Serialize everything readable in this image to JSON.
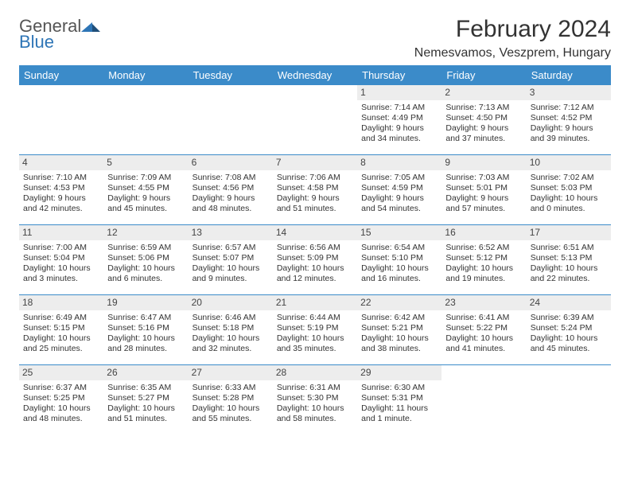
{
  "logo": {
    "general": "General",
    "blue": "Blue"
  },
  "title": "February 2024",
  "subtitle": "Nemesvamos, Veszprem, Hungary",
  "colors": {
    "header_bg": "#3b8bc9",
    "header_text": "#ffffff",
    "daynum_bg": "#ededed",
    "rule": "#3b8bc9",
    "logo_blue": "#2e75b6",
    "logo_gray": "#555555"
  },
  "daynames": [
    "Sunday",
    "Monday",
    "Tuesday",
    "Wednesday",
    "Thursday",
    "Friday",
    "Saturday"
  ],
  "weeks": [
    [
      {
        "n": "",
        "empty": true
      },
      {
        "n": "",
        "empty": true
      },
      {
        "n": "",
        "empty": true
      },
      {
        "n": "",
        "empty": true
      },
      {
        "n": "1",
        "sunrise": "Sunrise: 7:14 AM",
        "sunset": "Sunset: 4:49 PM",
        "daylight": "Daylight: 9 hours and 34 minutes."
      },
      {
        "n": "2",
        "sunrise": "Sunrise: 7:13 AM",
        "sunset": "Sunset: 4:50 PM",
        "daylight": "Daylight: 9 hours and 37 minutes."
      },
      {
        "n": "3",
        "sunrise": "Sunrise: 7:12 AM",
        "sunset": "Sunset: 4:52 PM",
        "daylight": "Daylight: 9 hours and 39 minutes."
      }
    ],
    [
      {
        "n": "4",
        "sunrise": "Sunrise: 7:10 AM",
        "sunset": "Sunset: 4:53 PM",
        "daylight": "Daylight: 9 hours and 42 minutes."
      },
      {
        "n": "5",
        "sunrise": "Sunrise: 7:09 AM",
        "sunset": "Sunset: 4:55 PM",
        "daylight": "Daylight: 9 hours and 45 minutes."
      },
      {
        "n": "6",
        "sunrise": "Sunrise: 7:08 AM",
        "sunset": "Sunset: 4:56 PM",
        "daylight": "Daylight: 9 hours and 48 minutes."
      },
      {
        "n": "7",
        "sunrise": "Sunrise: 7:06 AM",
        "sunset": "Sunset: 4:58 PM",
        "daylight": "Daylight: 9 hours and 51 minutes."
      },
      {
        "n": "8",
        "sunrise": "Sunrise: 7:05 AM",
        "sunset": "Sunset: 4:59 PM",
        "daylight": "Daylight: 9 hours and 54 minutes."
      },
      {
        "n": "9",
        "sunrise": "Sunrise: 7:03 AM",
        "sunset": "Sunset: 5:01 PM",
        "daylight": "Daylight: 9 hours and 57 minutes."
      },
      {
        "n": "10",
        "sunrise": "Sunrise: 7:02 AM",
        "sunset": "Sunset: 5:03 PM",
        "daylight": "Daylight: 10 hours and 0 minutes."
      }
    ],
    [
      {
        "n": "11",
        "sunrise": "Sunrise: 7:00 AM",
        "sunset": "Sunset: 5:04 PM",
        "daylight": "Daylight: 10 hours and 3 minutes."
      },
      {
        "n": "12",
        "sunrise": "Sunrise: 6:59 AM",
        "sunset": "Sunset: 5:06 PM",
        "daylight": "Daylight: 10 hours and 6 minutes."
      },
      {
        "n": "13",
        "sunrise": "Sunrise: 6:57 AM",
        "sunset": "Sunset: 5:07 PM",
        "daylight": "Daylight: 10 hours and 9 minutes."
      },
      {
        "n": "14",
        "sunrise": "Sunrise: 6:56 AM",
        "sunset": "Sunset: 5:09 PM",
        "daylight": "Daylight: 10 hours and 12 minutes."
      },
      {
        "n": "15",
        "sunrise": "Sunrise: 6:54 AM",
        "sunset": "Sunset: 5:10 PM",
        "daylight": "Daylight: 10 hours and 16 minutes."
      },
      {
        "n": "16",
        "sunrise": "Sunrise: 6:52 AM",
        "sunset": "Sunset: 5:12 PM",
        "daylight": "Daylight: 10 hours and 19 minutes."
      },
      {
        "n": "17",
        "sunrise": "Sunrise: 6:51 AM",
        "sunset": "Sunset: 5:13 PM",
        "daylight": "Daylight: 10 hours and 22 minutes."
      }
    ],
    [
      {
        "n": "18",
        "sunrise": "Sunrise: 6:49 AM",
        "sunset": "Sunset: 5:15 PM",
        "daylight": "Daylight: 10 hours and 25 minutes."
      },
      {
        "n": "19",
        "sunrise": "Sunrise: 6:47 AM",
        "sunset": "Sunset: 5:16 PM",
        "daylight": "Daylight: 10 hours and 28 minutes."
      },
      {
        "n": "20",
        "sunrise": "Sunrise: 6:46 AM",
        "sunset": "Sunset: 5:18 PM",
        "daylight": "Daylight: 10 hours and 32 minutes."
      },
      {
        "n": "21",
        "sunrise": "Sunrise: 6:44 AM",
        "sunset": "Sunset: 5:19 PM",
        "daylight": "Daylight: 10 hours and 35 minutes."
      },
      {
        "n": "22",
        "sunrise": "Sunrise: 6:42 AM",
        "sunset": "Sunset: 5:21 PM",
        "daylight": "Daylight: 10 hours and 38 minutes."
      },
      {
        "n": "23",
        "sunrise": "Sunrise: 6:41 AM",
        "sunset": "Sunset: 5:22 PM",
        "daylight": "Daylight: 10 hours and 41 minutes."
      },
      {
        "n": "24",
        "sunrise": "Sunrise: 6:39 AM",
        "sunset": "Sunset: 5:24 PM",
        "daylight": "Daylight: 10 hours and 45 minutes."
      }
    ],
    [
      {
        "n": "25",
        "sunrise": "Sunrise: 6:37 AM",
        "sunset": "Sunset: 5:25 PM",
        "daylight": "Daylight: 10 hours and 48 minutes."
      },
      {
        "n": "26",
        "sunrise": "Sunrise: 6:35 AM",
        "sunset": "Sunset: 5:27 PM",
        "daylight": "Daylight: 10 hours and 51 minutes."
      },
      {
        "n": "27",
        "sunrise": "Sunrise: 6:33 AM",
        "sunset": "Sunset: 5:28 PM",
        "daylight": "Daylight: 10 hours and 55 minutes."
      },
      {
        "n": "28",
        "sunrise": "Sunrise: 6:31 AM",
        "sunset": "Sunset: 5:30 PM",
        "daylight": "Daylight: 10 hours and 58 minutes."
      },
      {
        "n": "29",
        "sunrise": "Sunrise: 6:30 AM",
        "sunset": "Sunset: 5:31 PM",
        "daylight": "Daylight: 11 hours and 1 minute."
      },
      {
        "n": "",
        "empty": true
      },
      {
        "n": "",
        "empty": true
      }
    ]
  ]
}
